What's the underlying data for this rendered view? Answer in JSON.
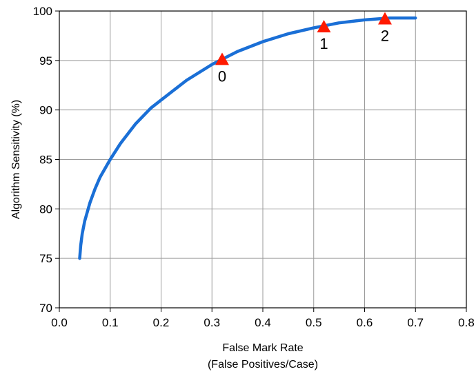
{
  "chart_data": {
    "type": "line",
    "title": "",
    "xlabel": "False Mark Rate",
    "xlabel_line2": "(False Positives/Case)",
    "ylabel": "Algorithm Sensitivity (%)",
    "xlim": [
      0.0,
      0.8
    ],
    "ylim": [
      70,
      100
    ],
    "x_ticks": [
      "0.0",
      "0.1",
      "0.2",
      "0.3",
      "0.4",
      "0.5",
      "0.6",
      "0.7",
      "0.8"
    ],
    "y_ticks": [
      "70",
      "75",
      "80",
      "85",
      "90",
      "95",
      "100"
    ],
    "grid": true,
    "colors": {
      "curve": "#1a6fd6",
      "marker": "#ff1a00",
      "grid": "#9a9a9a"
    },
    "series": [
      {
        "x": [
          0.04,
          0.042,
          0.045,
          0.05,
          0.06,
          0.07,
          0.08,
          0.1,
          0.12,
          0.15,
          0.18,
          0.2,
          0.25,
          0.3,
          0.35,
          0.4,
          0.45,
          0.5,
          0.55,
          0.6,
          0.65,
          0.7
        ],
        "y": [
          75.0,
          76.3,
          77.5,
          78.8,
          80.6,
          82.0,
          83.2,
          85.0,
          86.6,
          88.6,
          90.2,
          91.0,
          93.0,
          94.6,
          95.9,
          96.9,
          97.7,
          98.3,
          98.8,
          99.1,
          99.3,
          99.3
        ]
      }
    ],
    "markers": [
      {
        "label": "0",
        "x": 0.32,
        "y": 95.1
      },
      {
        "label": "1",
        "x": 0.52,
        "y": 98.4
      },
      {
        "label": "2",
        "x": 0.64,
        "y": 99.2
      }
    ]
  }
}
